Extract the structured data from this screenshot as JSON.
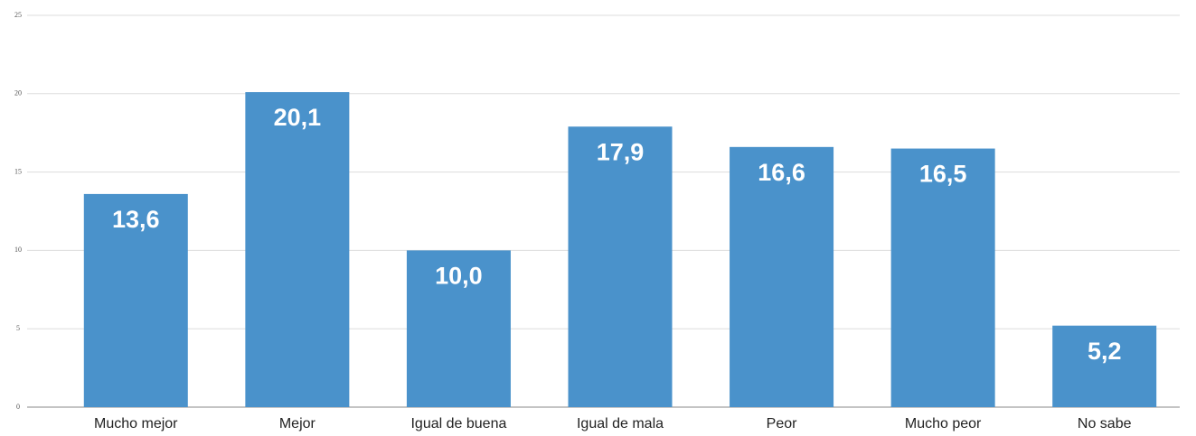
{
  "chart_data": {
    "type": "bar",
    "categories": [
      "Mucho mejor",
      "Mejor",
      "Igual de buena",
      "Igual de mala",
      "Peor",
      "Mucho peor",
      "No sabe"
    ],
    "values": [
      13.6,
      20.1,
      10.0,
      17.9,
      16.6,
      16.5,
      5.2
    ],
    "value_labels": [
      "13,6",
      "20,1",
      "10,0",
      "17,9",
      "16,6",
      "16,5",
      "5,2"
    ],
    "color": "#4a92cb",
    "ylim": [
      0,
      25
    ],
    "yticks": [
      0,
      5,
      10,
      15,
      20,
      25
    ],
    "grid": true
  }
}
